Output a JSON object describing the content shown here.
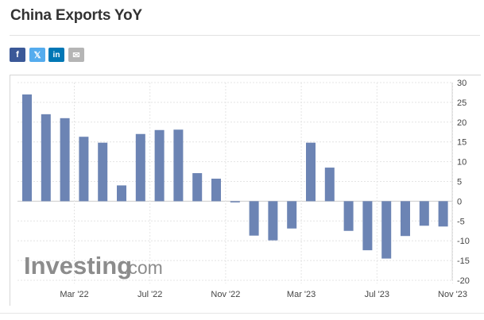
{
  "page": {
    "title": "China Exports YoY"
  },
  "share": {
    "facebook_label": "f",
    "twitter_label": "𝕏",
    "linkedin_label": "in",
    "email_label": "✉"
  },
  "watermark": {
    "brand": "Investing",
    "suffix": ".com"
  },
  "colors": {
    "bar": "#6c84b4",
    "grid": "#e4e4e4",
    "zero_line": "#cccccc",
    "axis_text": "#444444"
  },
  "chart_data": {
    "type": "bar",
    "title": "China Exports YoY",
    "xlabel": "",
    "ylabel": "",
    "ylim": [
      -20,
      30
    ],
    "y_ticks": [
      30,
      25,
      20,
      15,
      10,
      5,
      0,
      -5,
      -10,
      -15,
      -20
    ],
    "y_tick_labels": [
      "30",
      "25",
      "20",
      "15",
      "10",
      "5",
      "0",
      "-5",
      "-10",
      "-15",
      "-20"
    ],
    "x_tick_labels": [
      "Mar '22",
      "Jul '22",
      "Nov '22",
      "Mar '23",
      "Jul '23",
      "Nov '23"
    ],
    "x_tick_bar_index": [
      2.5,
      6.5,
      10.5,
      14.5,
      18.5,
      22.5
    ],
    "grid": true,
    "series": [
      {
        "values": [
          27.0,
          22.0,
          21.0,
          16.3,
          14.8,
          4.0,
          17.0,
          18.0,
          18.1,
          7.1,
          5.7,
          -0.3,
          -8.7,
          -9.9,
          -6.9,
          14.8,
          8.5,
          -7.5,
          -12.4,
          -14.5,
          -8.8,
          -6.2,
          -6.4
        ]
      }
    ]
  }
}
